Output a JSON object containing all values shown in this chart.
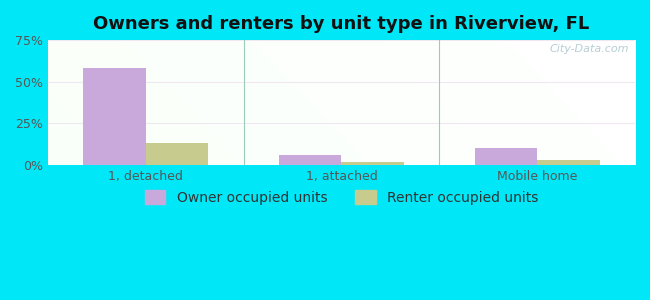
{
  "title": "Owners and renters by unit type in Riverview, FL",
  "categories": [
    "1, detached",
    "1, attached",
    "Mobile home"
  ],
  "owner_values": [
    58,
    6,
    10
  ],
  "renter_values": [
    13,
    2,
    3
  ],
  "owner_color": "#c9a8dc",
  "renter_color": "#c8cb8e",
  "ylim": [
    0,
    75
  ],
  "yticks": [
    0,
    25,
    50,
    75
  ],
  "yticklabels": [
    "0%",
    "25%",
    "50%",
    "75%"
  ],
  "bar_width": 0.32,
  "title_fontsize": 13,
  "tick_fontsize": 9,
  "legend_fontsize": 10,
  "outer_bg": "#00e8f8",
  "watermark": "City-Data.com",
  "legend_owner": "Owner occupied units",
  "legend_renter": "Renter occupied units",
  "grid_color": "#e8e8e8",
  "divider_color": "#aaddcc"
}
